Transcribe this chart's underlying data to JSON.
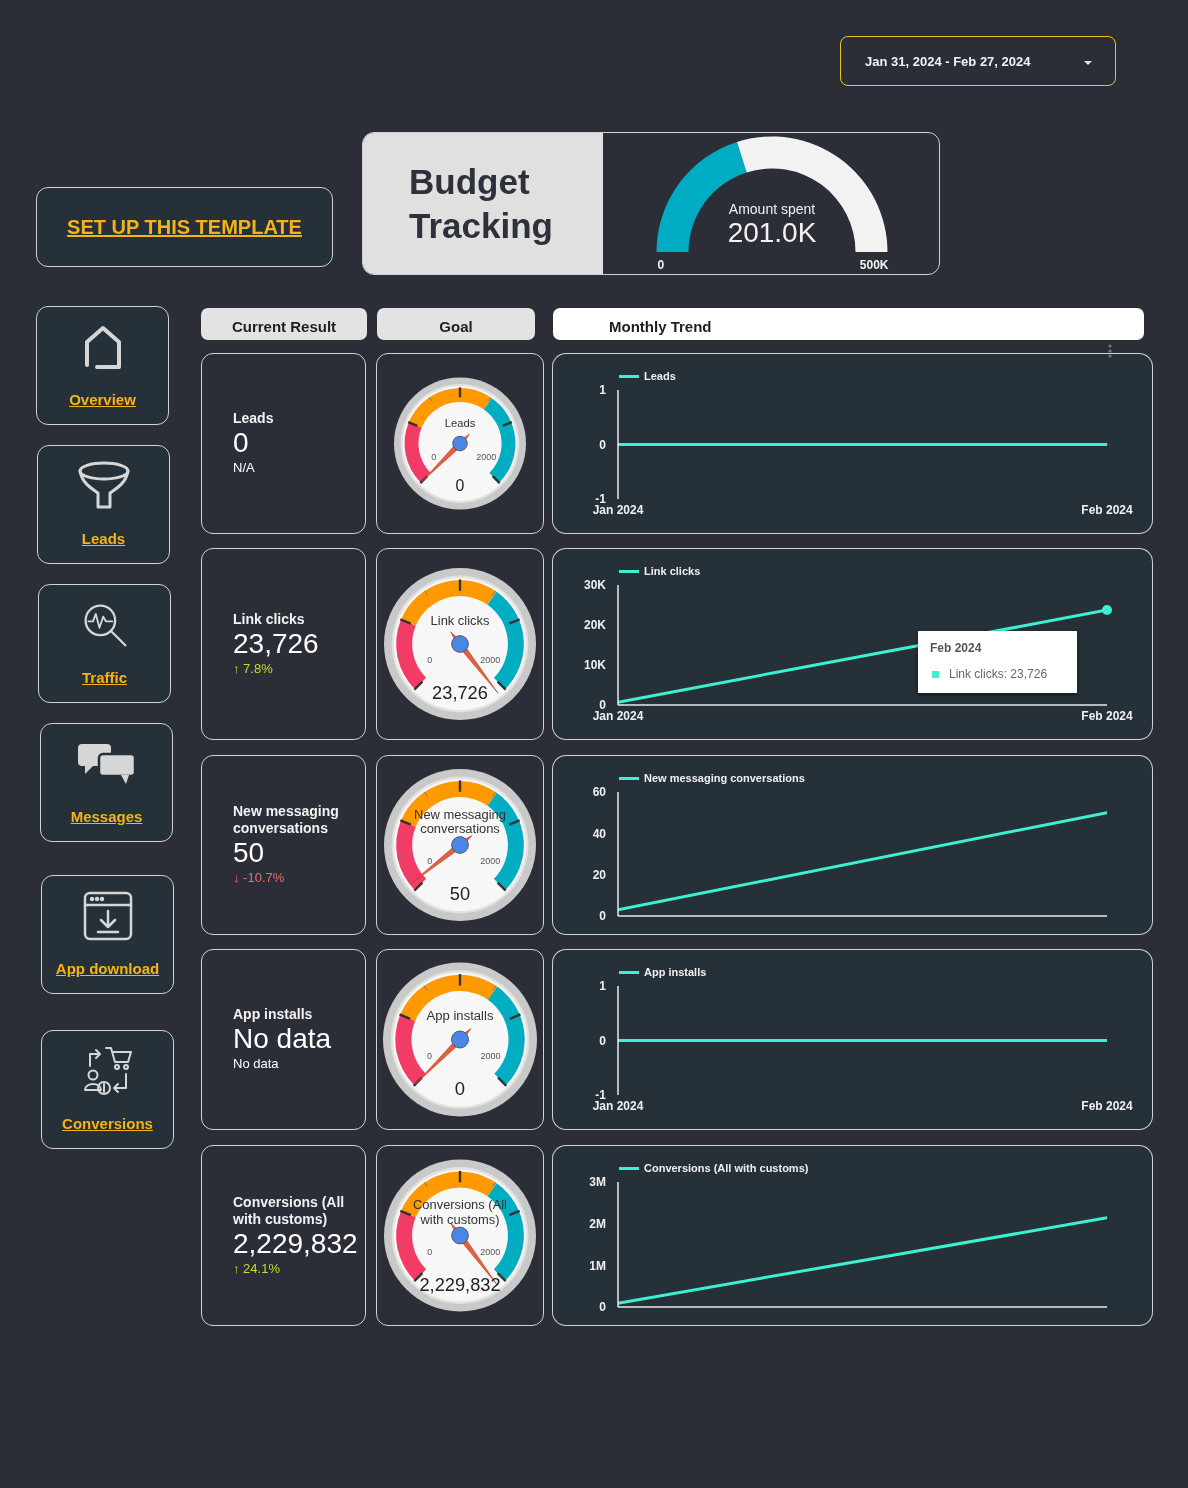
{
  "chart_data": [
    {
      "type": "other",
      "annotations": [
        "Jan 31, 2024 - Feb 27, 2024"
      ]
    },
    {
      "type": "other",
      "annotations": [
        "SET UP THIS TEMPLATE"
      ]
    },
    {
      "type": "donut",
      "title": "Budget Tracking",
      "categories": [
        null,
        null
      ],
      "values": [
        40.2,
        59.8
      ],
      "colors": [
        "#00acc3",
        "#f2f2f2"
      ],
      "annotations": [
        "Amount spent",
        "201.0K",
        "0",
        "500K"
      ]
    },
    {
      "type": "other",
      "annotations": [
        "Overview",
        "Leads",
        "Traffic",
        "Messages",
        "App download",
        "Conversions"
      ]
    },
    {
      "type": "other",
      "annotations": [
        "Current Result",
        "Goal",
        "Monthly Trend"
      ]
    },
    {
      "type": "other",
      "title": "Leads",
      "annotations": [
        "0",
        "N/A"
      ],
      "colors": [
        "#ffffff",
        "#ffffff"
      ]
    },
    {
      "type": "other",
      "title": "Leads",
      "values": [
        0,
        0,
        2000
      ],
      "data_labels": true
    },
    {
      "type": "line",
      "categories": [
        "Jan 2024",
        "Feb 2024"
      ],
      "series": [
        {
          "name": "Leads",
          "color": "#3cf0d2",
          "values": [
            0,
            0
          ]
        }
      ],
      "ylim": [
        -1,
        1
      ],
      "yticks": [
        -1,
        0,
        1
      ],
      "legend": "top left"
    },
    {
      "type": "other",
      "title": "Link clicks",
      "annotations": [
        "23,726",
        "↑ 7.8%"
      ],
      "colors": [
        "#ffffff",
        "#c8da2b"
      ]
    },
    {
      "type": "other",
      "title": "Link clicks",
      "values": [
        23726,
        0,
        2000
      ],
      "value_labels": [
        "23,726",
        "0",
        "2000"
      ]
    },
    {
      "type": "line",
      "categories": [
        "Jan 2024",
        "Feb 2024"
      ],
      "series": [
        {
          "name": "Link clicks",
          "color": "#3cf0d2",
          "values": [
            700,
            23726
          ]
        }
      ],
      "ylim": [
        0,
        30000
      ],
      "yticks": [
        0,
        {
          "value": 10000,
          "label": "10K"
        },
        {
          "value": 20000,
          "label": "20K"
        },
        {
          "value": 30000,
          "label": "30K"
        }
      ],
      "legend": "top left",
      "annotations": [
        "Feb 2024",
        "Link clicks: 23,726"
      ]
    },
    {
      "type": "other",
      "title": "New messaging conversations",
      "annotations": [
        "50",
        "↓ -10.7%"
      ],
      "colors": [
        "#ffffff",
        "#e56f6f"
      ]
    },
    {
      "type": "other",
      "title": "New messaging conversations",
      "values": [
        50,
        0,
        2000
      ],
      "data_labels": true
    },
    {
      "type": "line",
      "categories": [
        null,
        null
      ],
      "series": [
        {
          "name": "New messaging conversations",
          "color": "#3cf0d2",
          "values": [
            3,
            50
          ]
        }
      ],
      "ylim": [
        0,
        60
      ],
      "yticks": [
        0,
        20,
        40,
        60
      ],
      "legend": "top left",
      "tick_labels": "y"
    },
    {
      "type": "other",
      "title": "App installs",
      "annotations": [
        "No data",
        "No data"
      ],
      "colors": [
        "#ffffff",
        "#ffffff"
      ]
    },
    {
      "type": "other",
      "title": "App installs",
      "values": [
        0,
        0,
        2000
      ],
      "data_labels": true
    },
    {
      "type": "line",
      "categories": [
        "Jan 2024",
        "Feb 2024"
      ],
      "series": [
        {
          "name": "App installs",
          "color": "#3cf0d2",
          "values": [
            0,
            0
          ]
        }
      ],
      "ylim": [
        -1,
        1
      ],
      "yticks": [
        -1,
        0,
        1
      ],
      "legend": "top left"
    },
    {
      "type": "other",
      "title": "Conversions (All with customs)",
      "annotations": [
        "2,229,832",
        "↑ 24.1%"
      ],
      "colors": [
        "#ffffff",
        "#c8da2b"
      ]
    },
    {
      "type": "other",
      "title": "Conversions (All with customs)",
      "values": [
        2229832,
        0,
        2000
      ],
      "value_labels": [
        "2,229,832",
        "0",
        "2000"
      ]
    },
    {
      "type": "line",
      "categories": [
        null,
        null
      ],
      "series": [
        {
          "name": "Conversions (All with customs)",
          "color": "#3cf0d2",
          "values": [
            90000,
            2140000
          ]
        }
      ],
      "ylim": [
        0,
        3000000
      ],
      "yticks": [
        0,
        {
          "value": 1000000,
          "label": "1M"
        },
        {
          "value": 2000000,
          "label": "2M"
        },
        {
          "value": 3000000,
          "label": "3M"
        }
      ],
      "legend": "top left",
      "tick_labels": "y"
    }
  ]
}
